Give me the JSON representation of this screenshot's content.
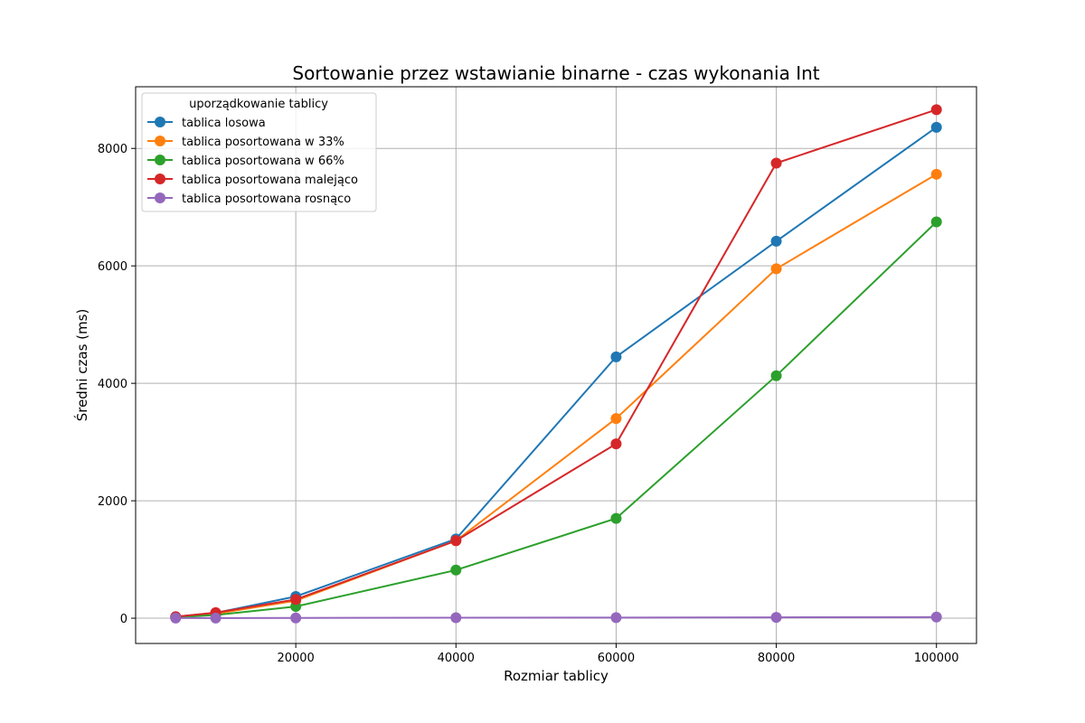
{
  "chart_data": {
    "type": "line",
    "title": "Sortowanie przez wstawianie binarne - czas wykonania Int",
    "xlabel": "Rozmiar tablicy",
    "ylabel": "Średni czas (ms)",
    "xlim": [
      0,
      105000
    ],
    "ylim": [
      -430,
      9050
    ],
    "xticks": [
      20000,
      40000,
      60000,
      80000,
      100000
    ],
    "xtick_labels": [
      "20000",
      "40000",
      "60000",
      "80000",
      "100000"
    ],
    "yticks": [
      0,
      2000,
      4000,
      6000,
      8000
    ],
    "ytick_labels": [
      "0",
      "2000",
      "4000",
      "6000",
      "8000"
    ],
    "grid": true,
    "legend": {
      "title": "uporządkowanie tablicy",
      "placement": "top-left"
    },
    "x": [
      5000,
      10000,
      20000,
      40000,
      60000,
      80000,
      100000
    ],
    "series": [
      {
        "name": "tablica losowa",
        "color": "#1f77b4",
        "values": [
          25,
          90,
          370,
          1350,
          4450,
          6420,
          8360
        ]
      },
      {
        "name": "tablica posortowana w 33%",
        "color": "#ff7f0e",
        "values": [
          20,
          75,
          300,
          1320,
          3400,
          5950,
          7560
        ]
      },
      {
        "name": "tablica posortowana w 66%",
        "color": "#2ca02c",
        "values": [
          15,
          55,
          200,
          820,
          1700,
          4130,
          6750
        ]
      },
      {
        "name": "tablica posortowana malejąco",
        "color": "#d62728",
        "values": [
          25,
          95,
          320,
          1320,
          2970,
          7750,
          8660
        ]
      },
      {
        "name": "tablica posortowana rosnąco",
        "color": "#9467bd",
        "values": [
          2,
          3,
          5,
          8,
          10,
          15,
          20
        ]
      }
    ]
  }
}
